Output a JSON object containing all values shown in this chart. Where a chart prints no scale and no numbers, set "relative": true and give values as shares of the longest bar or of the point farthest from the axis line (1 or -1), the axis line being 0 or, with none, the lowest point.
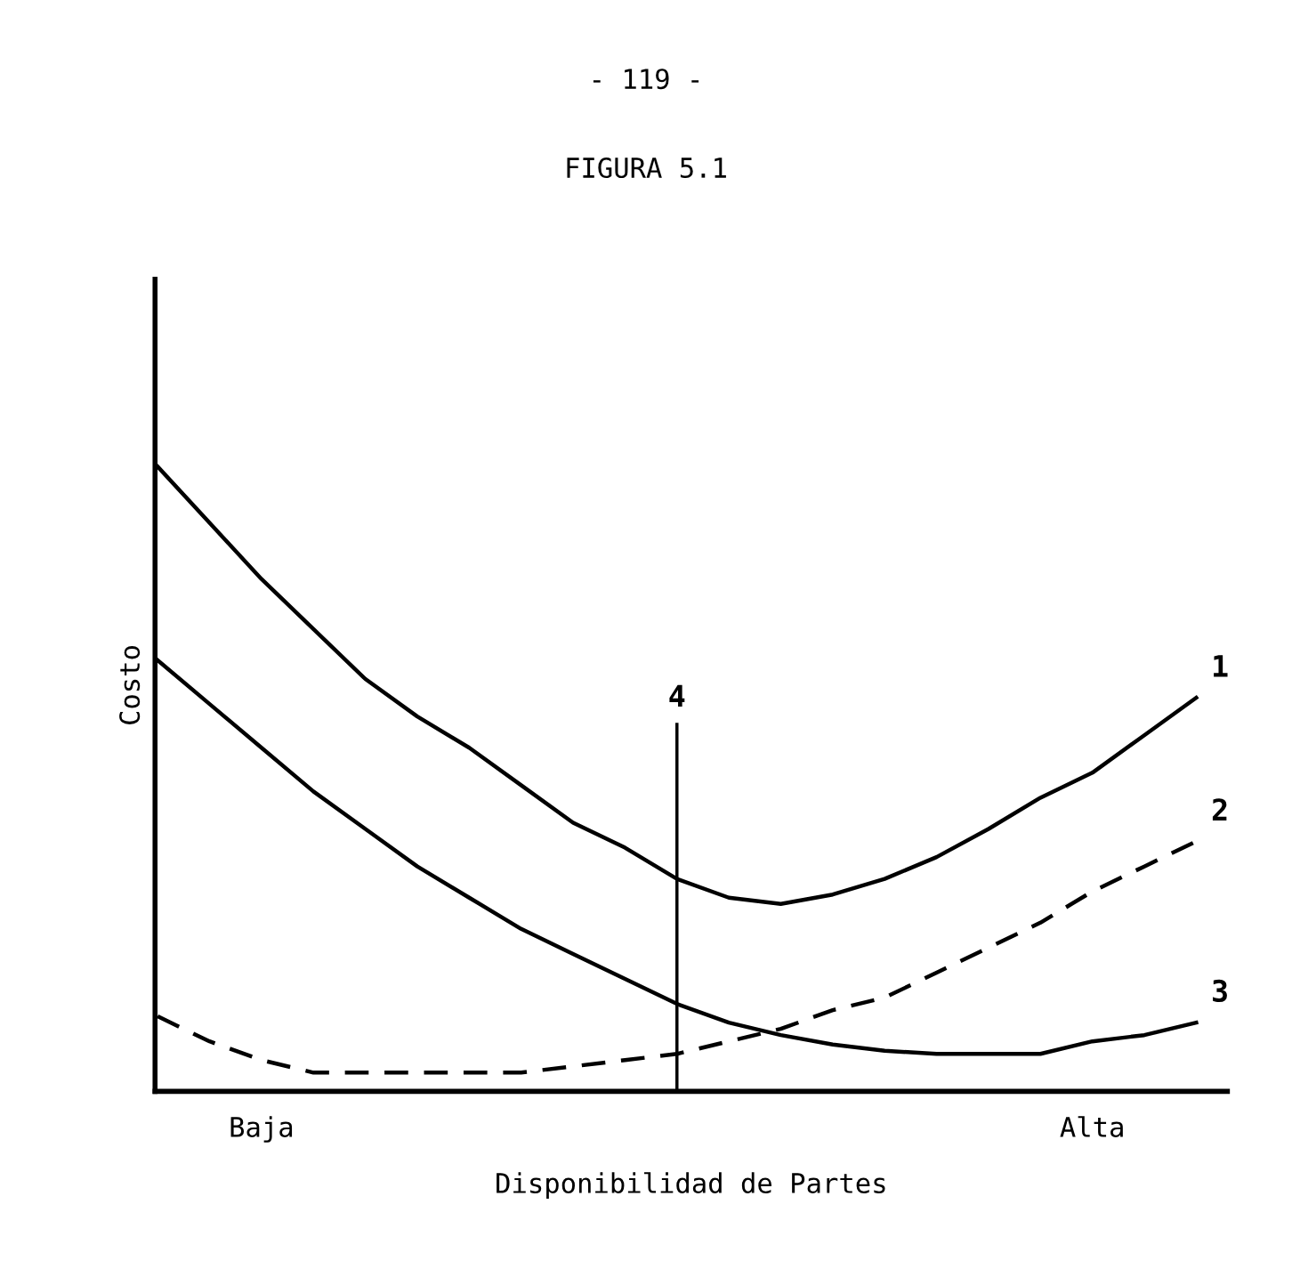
{
  "chart_data": {
    "type": "line",
    "relative": true,
    "title": "FIGURA 5.1",
    "annotations": [
      "- 119 -"
    ],
    "xlabel": "Disponibilidad de Partes",
    "ylabel": "Costo",
    "categories": [
      null,
      null,
      "Baja",
      null,
      null,
      null,
      null,
      null,
      null,
      null,
      null,
      null,
      null,
      null,
      null,
      null,
      null,
      null,
      "Alta",
      null,
      null
    ],
    "grid": false,
    "legend": false,
    "marker": "none",
    "series": [
      {
        "name": "1",
        "color": "#000000",
        "line_style": "solid",
        "values": [
          1,
          0.91,
          0.82,
          0.74,
          0.66,
          0.6,
          0.55,
          0.49,
          0.43,
          0.39,
          0.34,
          0.31,
          0.3,
          0.315,
          0.34,
          0.375,
          0.42,
          0.47,
          0.51,
          0.57,
          0.63
        ]
      },
      {
        "name": "2",
        "color": "#000000",
        "line_style": "dashed",
        "values": [
          0.12,
          0.08,
          0.05,
          0.03,
          0.03,
          0.03,
          0.03,
          0.03,
          0.04,
          0.05,
          0.06,
          0.08,
          0.1,
          0.13,
          0.15,
          0.19,
          0.23,
          0.27,
          0.32,
          0.36,
          0.4
        ]
      },
      {
        "name": "3",
        "color": "#000000",
        "line_style": "solid",
        "values": [
          0.69,
          0.62,
          0.55,
          0.48,
          0.42,
          0.36,
          0.31,
          0.26,
          0.22,
          0.18,
          0.14,
          0.11,
          0.09,
          0.075,
          0.065,
          0.06,
          0.06,
          0.06,
          0.08,
          0.09,
          0.11
        ]
      },
      {
        "name": "4",
        "type": "bar",
        "color": "#000000",
        "values": [
          null,
          null,
          null,
          null,
          null,
          null,
          null,
          null,
          null,
          null,
          0.59,
          null,
          null,
          null,
          null,
          null,
          null,
          null,
          null,
          null,
          null
        ]
      }
    ]
  }
}
